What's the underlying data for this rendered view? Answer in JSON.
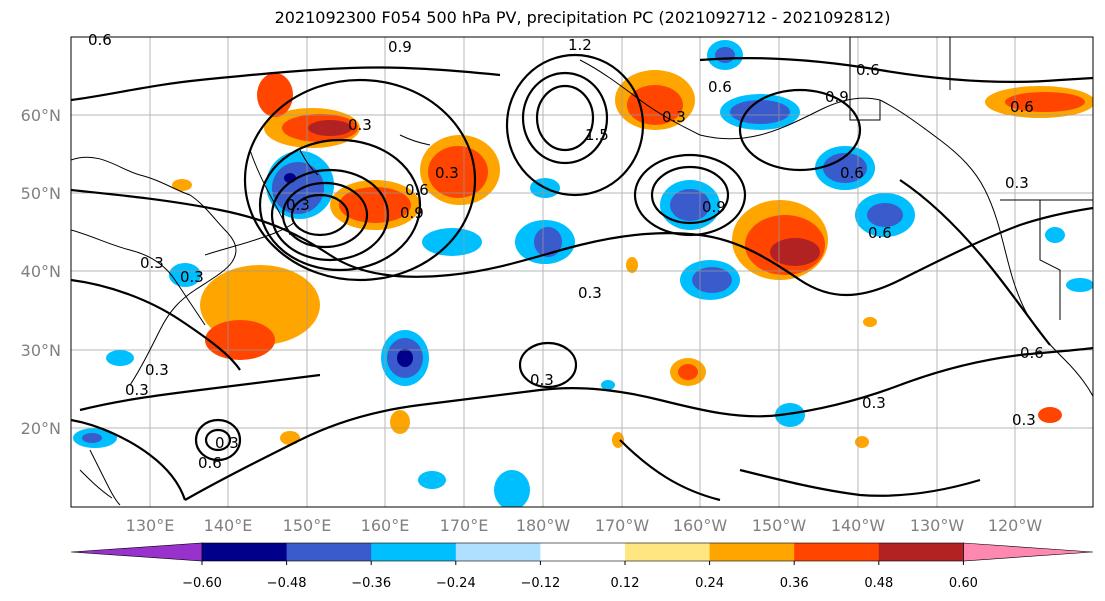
{
  "title": "2021092300 F054 500 hPa PV, precipitation PC (2021092712 - 2021092812)",
  "latitude_labels": [
    "60°N",
    "50°N",
    "40°N",
    "30°N",
    "20°N"
  ],
  "longitude_labels": [
    "130°E",
    "140°E",
    "150°E",
    "160°E",
    "170°E",
    "180°W",
    "170°W",
    "160°W",
    "150°W",
    "140°W",
    "130°W",
    "120°W"
  ],
  "colorbar": {
    "colors": [
      "#9932cc",
      "#00008b",
      "#3a5bcc",
      "#00bfff",
      "#b0e0ff",
      "#ffffff",
      "#ffe680",
      "#ffa500",
      "#ff4500",
      "#b22222",
      "#ff88b0"
    ],
    "tick_labels": [
      "−0.60",
      "−0.48",
      "−0.36",
      "−0.24",
      "−0.12",
      "0.12",
      "0.24",
      "0.36",
      "0.48",
      "0.60"
    ]
  },
  "contour_labels": [
    "0.6",
    "0.9",
    "1.2",
    "0.6",
    "0.9",
    "0.3",
    "0.6",
    "0.3",
    "0.3",
    "0.9",
    "0.6",
    "0.9",
    "0.3",
    "0.6",
    "0.6",
    "0.3",
    "0.3",
    "0.3",
    "0.3",
    "0.6",
    "0.6",
    "0.3",
    "0.3",
    "0.3",
    "0.3",
    "0.3",
    "1.5",
    "0.6",
    "0.3"
  ]
}
